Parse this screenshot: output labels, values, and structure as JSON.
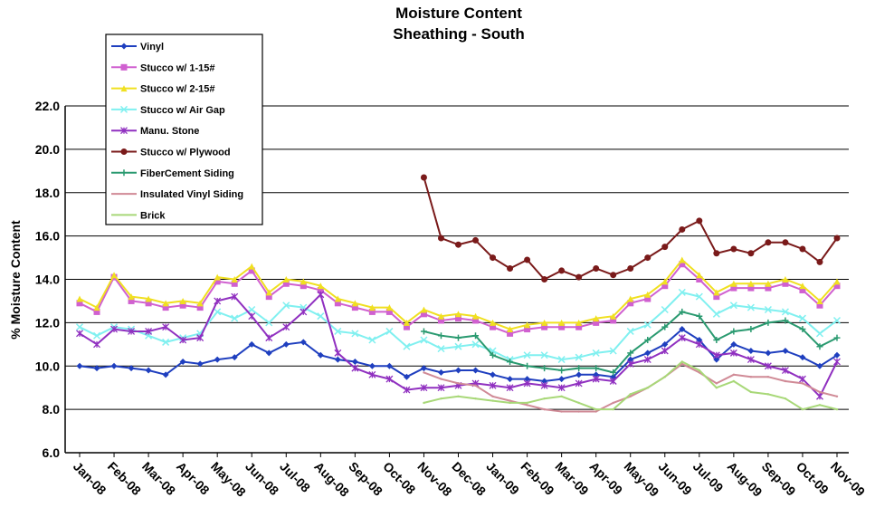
{
  "chart_data": {
    "type": "line",
    "title": "Moisture Content",
    "subtitle": "Sheathing - South",
    "y_label": "% Moisture Content",
    "categories": [
      "Jan-08",
      null,
      "Feb-08",
      null,
      "Mar-08",
      null,
      "Apr-08",
      null,
      "May-08",
      null,
      "Jun-08",
      null,
      "Jul-08",
      null,
      "Aug-08",
      null,
      "Sep-08",
      null,
      "Oct-08",
      null,
      "Nov-08",
      null,
      "Dec-08",
      null,
      "Jan-09",
      null,
      "Feb-09",
      null,
      "Mar-09",
      null,
      "Apr-09",
      null,
      "May-09",
      null,
      "Jun-09",
      null,
      "Jul-09",
      null,
      "Aug-09",
      null,
      "Sep-09",
      null,
      "Oct-09",
      null,
      "Nov-09"
    ],
    "ylim": [
      6,
      22
    ],
    "yticks": [
      {
        "value": 6,
        "label": "6.0"
      },
      {
        "value": 8,
        "label": "8.0"
      },
      {
        "value": 10,
        "label": "10.0"
      },
      {
        "value": 12,
        "label": "12.0"
      },
      {
        "value": 14,
        "label": "14.0"
      },
      {
        "value": 16,
        "label": "16.0"
      },
      {
        "value": 18,
        "label": "18.0"
      },
      {
        "value": 20,
        "label": "20.0"
      },
      {
        "value": 22,
        "label": "22.0"
      }
    ],
    "grid": true,
    "series": [
      {
        "name": "Vinyl",
        "color": "#1f3fbf",
        "marker": "diamond",
        "values": [
          10.0,
          9.9,
          10.0,
          9.9,
          9.8,
          9.6,
          10.2,
          10.1,
          10.3,
          10.4,
          11.0,
          10.6,
          11.0,
          11.1,
          10.5,
          10.3,
          10.2,
          10.0,
          10.0,
          9.5,
          9.9,
          9.7,
          9.8,
          9.8,
          9.6,
          9.4,
          9.4,
          9.3,
          9.4,
          9.6,
          9.6,
          9.5,
          10.3,
          10.6,
          11.0,
          11.7,
          11.2,
          10.3,
          11.0,
          10.7,
          10.6,
          10.7,
          10.4,
          10.0,
          10.5
        ]
      },
      {
        "name": "Stucco w/ 1-15#",
        "color": "#d060d0",
        "marker": "square",
        "values": [
          12.9,
          12.5,
          14.1,
          13.0,
          12.9,
          12.7,
          12.8,
          12.7,
          13.9,
          13.8,
          14.4,
          13.2,
          13.8,
          13.7,
          13.5,
          12.9,
          12.7,
          12.5,
          12.5,
          11.8,
          12.4,
          12.1,
          12.2,
          12.1,
          11.8,
          11.5,
          11.7,
          11.8,
          11.8,
          11.8,
          12.0,
          12.1,
          12.9,
          13.1,
          13.7,
          14.7,
          14.0,
          13.2,
          13.6,
          13.6,
          13.6,
          13.8,
          13.5,
          12.8,
          13.7
        ]
      },
      {
        "name": "Stucco w/ 2-15#",
        "color": "#f0e020",
        "marker": "triangle",
        "values": [
          13.1,
          12.7,
          14.2,
          13.2,
          13.1,
          12.9,
          13.0,
          12.9,
          14.1,
          14.0,
          14.6,
          13.4,
          14.0,
          13.9,
          13.7,
          13.1,
          12.9,
          12.7,
          12.7,
          12.0,
          12.6,
          12.3,
          12.4,
          12.3,
          12.0,
          11.7,
          11.9,
          12.0,
          12.0,
          12.0,
          12.2,
          12.3,
          13.1,
          13.3,
          13.9,
          14.9,
          14.2,
          13.4,
          13.8,
          13.8,
          13.8,
          14.0,
          13.7,
          13.0,
          13.9
        ]
      },
      {
        "name": "Stucco w/ Air Gap",
        "color": "#80f0f0",
        "marker": "x",
        "values": [
          11.8,
          11.4,
          11.8,
          11.7,
          11.4,
          11.1,
          11.3,
          11.5,
          12.5,
          12.2,
          12.6,
          12.0,
          12.8,
          12.7,
          12.3,
          11.6,
          11.5,
          11.2,
          11.6,
          10.9,
          11.2,
          10.8,
          10.9,
          11.0,
          10.7,
          10.3,
          10.5,
          10.5,
          10.3,
          10.4,
          10.6,
          10.7,
          11.6,
          11.9,
          12.6,
          13.4,
          13.2,
          12.4,
          12.8,
          12.7,
          12.6,
          12.5,
          12.2,
          11.5,
          12.1
        ]
      },
      {
        "name": "Manu. Stone",
        "color": "#9030c0",
        "marker": "star",
        "values": [
          11.5,
          11.0,
          11.7,
          11.6,
          11.6,
          11.8,
          11.2,
          11.3,
          13.0,
          13.2,
          12.3,
          11.3,
          11.8,
          12.5,
          13.3,
          10.6,
          9.9,
          9.6,
          9.4,
          8.9,
          9.0,
          9.0,
          9.1,
          9.2,
          9.1,
          9.0,
          9.2,
          9.1,
          9.0,
          9.2,
          9.4,
          9.3,
          10.1,
          10.3,
          10.7,
          11.3,
          11.0,
          10.5,
          10.6,
          10.3,
          10.0,
          9.8,
          9.4,
          8.6,
          10.2
        ]
      },
      {
        "name": "Stucco w/ Plywood",
        "color": "#7a1a1a",
        "marker": "circle",
        "values": [
          null,
          null,
          null,
          null,
          null,
          null,
          null,
          null,
          null,
          null,
          null,
          null,
          null,
          null,
          null,
          null,
          null,
          null,
          null,
          null,
          18.7,
          15.9,
          15.6,
          15.8,
          15.0,
          14.5,
          14.9,
          14.0,
          14.4,
          14.1,
          14.5,
          14.2,
          14.5,
          15.0,
          15.5,
          16.3,
          16.7,
          15.2,
          15.4,
          15.2,
          15.7,
          15.7,
          15.4,
          14.8,
          15.9
        ]
      },
      {
        "name": "FiberCement Siding",
        "color": "#2a9a70",
        "marker": "plus",
        "values": [
          null,
          null,
          null,
          null,
          null,
          null,
          null,
          null,
          null,
          null,
          null,
          null,
          null,
          null,
          null,
          null,
          null,
          null,
          null,
          null,
          11.6,
          11.4,
          11.3,
          11.4,
          10.5,
          10.2,
          10.0,
          9.9,
          9.8,
          9.9,
          9.9,
          9.7,
          10.6,
          11.2,
          11.8,
          12.5,
          12.3,
          11.2,
          11.6,
          11.7,
          12.0,
          12.1,
          11.7,
          10.9,
          11.3
        ]
      },
      {
        "name": "Insulated Vinyl Siding",
        "color": "#d08a96",
        "marker": "none",
        "values": [
          null,
          null,
          null,
          null,
          null,
          null,
          null,
          null,
          null,
          null,
          null,
          null,
          null,
          null,
          null,
          null,
          null,
          null,
          null,
          null,
          9.7,
          9.4,
          9.2,
          9.1,
          8.6,
          8.4,
          8.2,
          8.0,
          7.9,
          7.9,
          7.9,
          8.3,
          8.6,
          9.0,
          9.5,
          10.1,
          9.7,
          9.2,
          9.6,
          9.5,
          9.5,
          9.3,
          9.2,
          8.8,
          8.6
        ]
      },
      {
        "name": "Brick",
        "color": "#a8d878",
        "marker": "none",
        "values": [
          null,
          null,
          null,
          null,
          null,
          null,
          null,
          null,
          null,
          null,
          null,
          null,
          null,
          null,
          null,
          null,
          null,
          null,
          null,
          null,
          8.3,
          8.5,
          8.6,
          8.5,
          8.4,
          8.3,
          8.3,
          8.5,
          8.6,
          8.3,
          8.0,
          8.0,
          8.7,
          9.0,
          9.5,
          10.2,
          9.8,
          9.0,
          9.3,
          8.8,
          8.7,
          8.5,
          8.0,
          8.2,
          8.0
        ]
      }
    ]
  }
}
